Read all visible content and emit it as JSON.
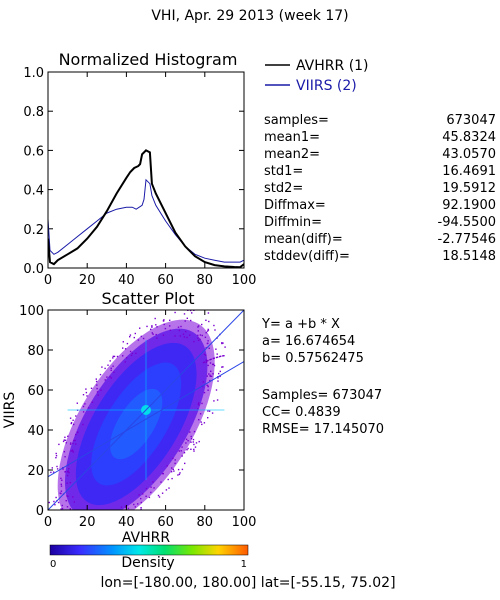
{
  "page_title": "VHI,  Apr. 29 2013 (week 17)",
  "colors": {
    "series1": "#000000",
    "series2": "#1a1aa8",
    "legend2_text": "#1a1aa8",
    "scatter_regression": "#2a46e6",
    "scatter_identity": "#2a46e6"
  },
  "chart_data": [
    {
      "id": "histogram",
      "type": "line",
      "title": "Normalized Histogram",
      "xlabel": "",
      "ylabel": "",
      "xlim": [
        0,
        100
      ],
      "ylim": [
        0.0,
        1.0
      ],
      "xticks": [
        "0",
        "20",
        "40",
        "60",
        "80",
        "100"
      ],
      "yticks": [
        "0.0",
        "0.2",
        "0.4",
        "0.6",
        "0.8",
        "1.0"
      ],
      "legend_position": "top-right",
      "series": [
        {
          "name": "AVHRR (1)",
          "color": "#000000",
          "points": [
            [
              0,
              0.15
            ],
            [
              1,
              0.03
            ],
            [
              3,
              0.02
            ],
            [
              5,
              0.04
            ],
            [
              10,
              0.07
            ],
            [
              15,
              0.1
            ],
            [
              20,
              0.15
            ],
            [
              25,
              0.21
            ],
            [
              30,
              0.29
            ],
            [
              35,
              0.38
            ],
            [
              40,
              0.46
            ],
            [
              42,
              0.49
            ],
            [
              44,
              0.51
            ],
            [
              46,
              0.52
            ],
            [
              47,
              0.53
            ],
            [
              48,
              0.58
            ],
            [
              50,
              0.6
            ],
            [
              52,
              0.59
            ],
            [
              53,
              0.43
            ],
            [
              55,
              0.38
            ],
            [
              60,
              0.28
            ],
            [
              65,
              0.18
            ],
            [
              70,
              0.11
            ],
            [
              75,
              0.06
            ],
            [
              80,
              0.03
            ],
            [
              85,
              0.015
            ],
            [
              90,
              0.008
            ],
            [
              95,
              0.005
            ],
            [
              98,
              0.004
            ],
            [
              100,
              0.02
            ]
          ]
        },
        {
          "name": "VIIRS (2)",
          "color": "#1a1aa8",
          "points": [
            [
              0,
              0.25
            ],
            [
              1,
              0.09
            ],
            [
              3,
              0.07
            ],
            [
              5,
              0.08
            ],
            [
              10,
              0.12
            ],
            [
              15,
              0.16
            ],
            [
              20,
              0.2
            ],
            [
              25,
              0.24
            ],
            [
              30,
              0.28
            ],
            [
              35,
              0.3
            ],
            [
              40,
              0.31
            ],
            [
              43,
              0.31
            ],
            [
              45,
              0.3
            ],
            [
              48,
              0.32
            ],
            [
              49,
              0.35
            ],
            [
              50,
              0.45
            ],
            [
              52,
              0.43
            ],
            [
              53,
              0.37
            ],
            [
              55,
              0.32
            ],
            [
              60,
              0.24
            ],
            [
              65,
              0.17
            ],
            [
              70,
              0.11
            ],
            [
              75,
              0.07
            ],
            [
              80,
              0.05
            ],
            [
              85,
              0.04
            ],
            [
              90,
              0.03
            ],
            [
              95,
              0.03
            ],
            [
              98,
              0.03
            ],
            [
              100,
              0.04
            ]
          ]
        }
      ]
    },
    {
      "id": "scatter",
      "type": "scatter",
      "title": "Scatter Plot",
      "xlabel": "AVHRR",
      "ylabel": "VIIRS",
      "xlim": [
        0,
        100
      ],
      "ylim": [
        0,
        100
      ],
      "xticks": [
        "0",
        "20",
        "40",
        "60",
        "80",
        "100"
      ],
      "yticks": [
        "0",
        "20",
        "40",
        "60",
        "80",
        "100"
      ],
      "regression": {
        "a": 16.674654,
        "b": 0.57562475
      },
      "colorbar": {
        "label": "Density",
        "min_label": "0",
        "max_label": "1"
      }
    }
  ],
  "histogram_stats": [
    {
      "label": "samples=",
      "value": "673047"
    },
    {
      "label": "mean1=",
      "value": "45.8324"
    },
    {
      "label": "mean2=",
      "value": "43.0570"
    },
    {
      "label": "std1=",
      "value": "16.4691"
    },
    {
      "label": "std2=",
      "value": "19.5912"
    },
    {
      "label": "Diffmax=",
      "value": "92.1900"
    },
    {
      "label": "Diffmin=",
      "value": "-94.5500"
    },
    {
      "label": "mean(diff)=",
      "value": "-2.77546"
    },
    {
      "label": "stddev(diff)=",
      "value": "18.5148"
    }
  ],
  "scatter_stats": {
    "equation": "Y= a +b * X",
    "a_line": "a= 16.674654",
    "b_line": "b= 0.57562475",
    "samples_line": "Samples= 673047",
    "cc_line": "CC=  0.4839",
    "rmse_line": "RMSE= 17.145070"
  },
  "footer": "lon=[-180.00, 180.00] lat=[-55.15, 75.02]"
}
